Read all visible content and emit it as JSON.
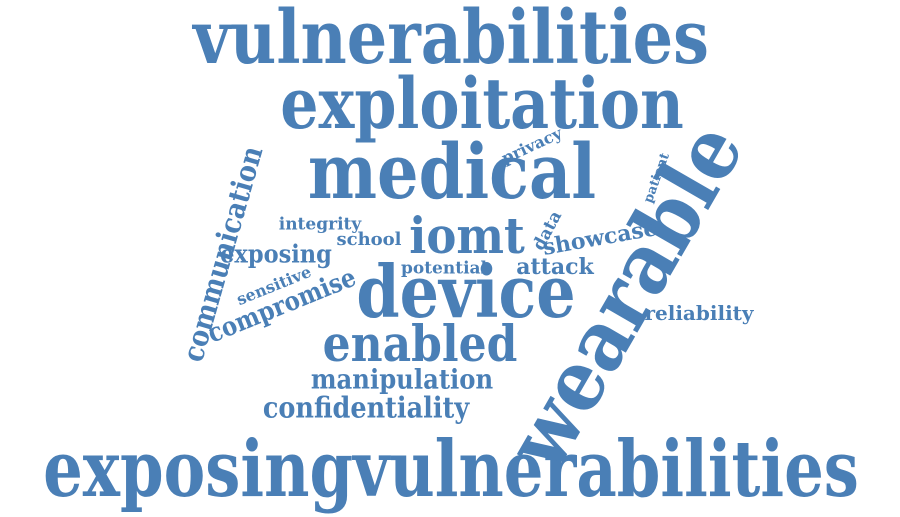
{
  "word_cloud": {
    "text_color": "#4a7fb6",
    "background_color": "#ffffff",
    "words": [
      "vulnerabilities",
      "exploitation",
      "medical",
      "exposingvulnerabilities",
      "device",
      "iomt",
      "enabled",
      "manipulation",
      "confidentiality",
      "wearable",
      "communication",
      "compromise",
      "exposing",
      "sensitive",
      "integrity",
      "school",
      "potential",
      "attack",
      "data",
      "showcase",
      "privacy",
      "patient",
      "reliability"
    ]
  }
}
